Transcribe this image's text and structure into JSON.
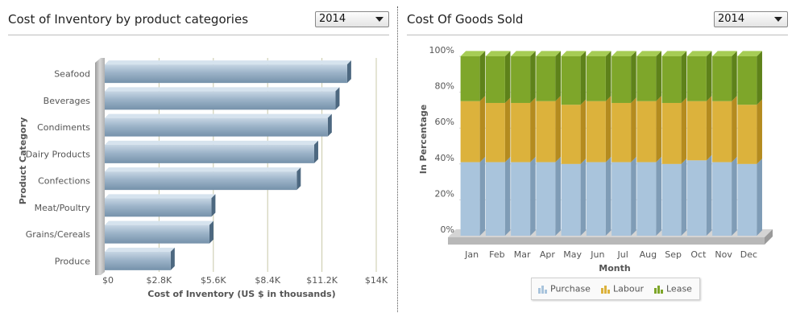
{
  "left_panel": {
    "title": "Cost of Inventory by product categories",
    "year_select": {
      "value": "2014"
    }
  },
  "right_panel": {
    "title": "Cost Of Goods Sold",
    "year_select": {
      "value": "2014"
    }
  },
  "chart_data": [
    {
      "type": "bar",
      "orientation": "horizontal",
      "title": "",
      "xlabel": "Cost of Inventory (US $ in thousands)",
      "ylabel": "Product Category",
      "categories": [
        "Seafood",
        "Beverages",
        "Condiments",
        "Dairy Products",
        "Confections",
        "Meat/Poultry",
        "Grains/Cereals",
        "Produce"
      ],
      "values": [
        12.5,
        11.9,
        11.5,
        10.8,
        9.9,
        5.5,
        5.4,
        3.4
      ],
      "xlim": [
        0,
        14
      ],
      "ticks": [
        "$0",
        "$2.8K",
        "$5.6K",
        "$8.4K",
        "$11.2K",
        "$14K"
      ],
      "tick_values": [
        0,
        2.8,
        5.6,
        8.4,
        11.2,
        14
      ],
      "grid": "vertical",
      "colors": {
        "bar": "#8fa8bf",
        "bar_top": "#d6e3ee",
        "bar_side": "#4d6880"
      }
    },
    {
      "type": "bar",
      "stacked": "percent",
      "title": "",
      "xlabel": "Month",
      "ylabel": "In Percentage",
      "categories": [
        "Jan",
        "Feb",
        "Mar",
        "Apr",
        "May",
        "Jun",
        "Jul",
        "Aug",
        "Sep",
        "Oct",
        "Nov",
        "Dec"
      ],
      "series": [
        {
          "name": "Purchase",
          "values": [
            41,
            41,
            41,
            41,
            40,
            41,
            41,
            41,
            40,
            42,
            41,
            40
          ],
          "color": "#a9c4dc"
        },
        {
          "name": "Labour",
          "values": [
            34,
            33,
            33,
            34,
            33,
            34,
            33,
            34,
            34,
            33,
            34,
            33
          ],
          "color": "#dcb23c"
        },
        {
          "name": "Lease",
          "values": [
            25,
            26,
            26,
            25,
            27,
            25,
            26,
            25,
            26,
            25,
            25,
            27
          ],
          "color": "#7ea62a"
        }
      ],
      "ylim": [
        0,
        100
      ],
      "ticks": [
        "0%",
        "20%",
        "40%",
        "60%",
        "80%",
        "100%"
      ],
      "tick_values": [
        0,
        20,
        40,
        60,
        80,
        100
      ],
      "legend": "bottom"
    }
  ]
}
